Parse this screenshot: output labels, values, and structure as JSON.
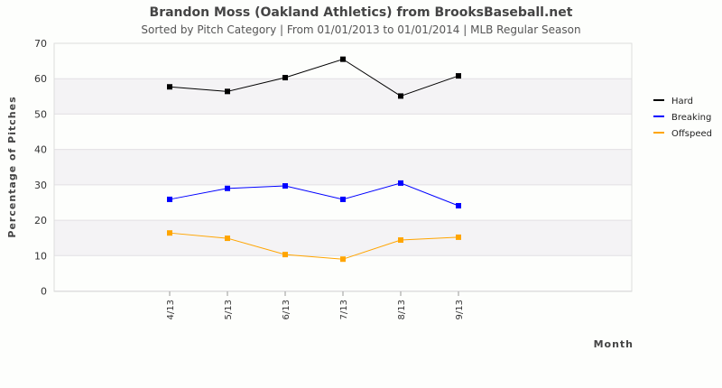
{
  "chart_data": {
    "type": "line",
    "title": "Brandon Moss (Oakland Athletics) from BrooksBaseball.net",
    "subtitle": "Sorted by Pitch Category | From 01/01/2013 to 01/01/2014 | MLB Regular Season",
    "xlabel": "Month",
    "ylabel": "Percentage of Pitches",
    "ylim": [
      0,
      70
    ],
    "yticks": [
      0,
      10,
      20,
      30,
      40,
      50,
      60,
      70
    ],
    "categories": [
      "4/13",
      "5/13",
      "6/13",
      "7/13",
      "8/13",
      "9/13"
    ],
    "legend_position": "right",
    "grid": true,
    "series": [
      {
        "name": "Hard",
        "color": "#000000",
        "values": [
          57.7,
          56.4,
          60.3,
          65.5,
          55.1,
          60.8
        ]
      },
      {
        "name": "Breaking",
        "color": "#0000ff",
        "values": [
          25.9,
          29.0,
          29.7,
          25.9,
          30.5,
          24.1
        ]
      },
      {
        "name": "Offspeed",
        "color": "#ffa500",
        "values": [
          16.4,
          14.9,
          10.3,
          9.0,
          14.4,
          15.2
        ]
      }
    ]
  }
}
